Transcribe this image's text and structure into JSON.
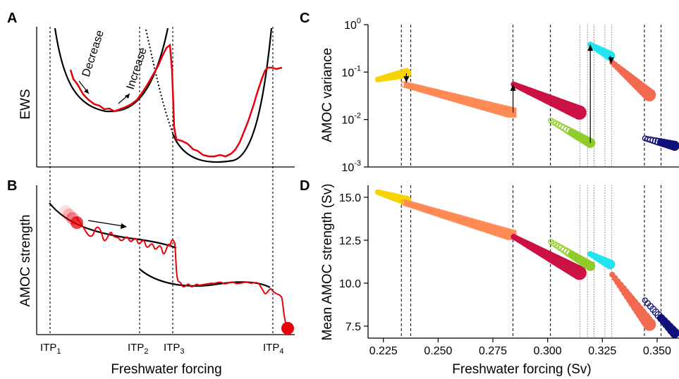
{
  "panels": {
    "A": {
      "label": "A",
      "ylabel": "EWS",
      "decrease": "Decrease",
      "increase": "Increase"
    },
    "B": {
      "label": "B",
      "ylabel": "AMOC strength"
    },
    "C": {
      "label": "C",
      "ylabel": "AMOC variance"
    },
    "D": {
      "label": "D",
      "ylabel": "Mean AMOC strength (Sv)"
    }
  },
  "left_xlabel": "Freshwater forcing",
  "itp": [
    {
      "main": "ITP",
      "sub": "1"
    },
    {
      "main": "ITP",
      "sub": "2"
    },
    {
      "main": "ITP",
      "sub": "3"
    },
    {
      "main": "ITP",
      "sub": "4"
    }
  ],
  "colors": {
    "yellow": "#f5d400",
    "orange": "#ff8a55",
    "crimson": "#cc1144",
    "green": "#8fcc2a",
    "cyan": "#22e3f0",
    "salmon": "#f26a4f",
    "navy": "#10107a",
    "red": "#e8000a"
  },
  "chart_data": [
    {
      "panel": "C",
      "type": "scatter",
      "xlabel": "",
      "ylabel": "AMOC variance",
      "yscale": "log",
      "xlim": [
        0.218,
        0.36
      ],
      "ylim": [
        0.001,
        1
      ],
      "yticks": [
        {
          "value": 1,
          "base": "10",
          "exp": "0"
        },
        {
          "value": 0.1,
          "base": "10",
          "exp": "-1"
        },
        {
          "value": 0.01,
          "base": "10",
          "exp": "-2"
        },
        {
          "value": 0.001,
          "base": "10",
          "exp": "-3"
        }
      ],
      "vlines_dashed": [
        0.2332,
        0.2375,
        0.2842,
        0.3013,
        0.3442,
        0.3518
      ],
      "vlines_dotted": [
        0.3147,
        0.3182,
        0.3212,
        0.3262,
        0.3292
      ],
      "series": [
        {
          "color": "yellow",
          "marker": "circle",
          "x_range": [
            0.2225,
            0.2355
          ],
          "y_range": [
            0.07,
            0.095
          ]
        },
        {
          "color": "orange",
          "marker": "square",
          "x_range": [
            0.2345,
            0.2835
          ],
          "y_range": [
            0.055,
            0.014
          ]
        },
        {
          "color": "crimson",
          "marker": "circle",
          "x_range": [
            0.2845,
            0.3145
          ],
          "y_range": [
            0.055,
            0.014
          ]
        },
        {
          "color": "green",
          "marker": "circle",
          "x_range": [
            0.3015,
            0.3195
          ],
          "y_range": [
            0.0095,
            0.0032
          ]
        },
        {
          "color": "cyan",
          "marker": "circle",
          "x_range": [
            0.3195,
            0.3285
          ],
          "y_range": [
            0.38,
            0.22
          ]
        },
        {
          "color": "salmon",
          "marker": "circle",
          "x_range": [
            0.3295,
            0.3465
          ],
          "y_range": [
            0.16,
            0.033
          ]
        },
        {
          "color": "navy",
          "marker": "circle",
          "x_range": [
            0.3445,
            0.358
          ],
          "y_range": [
            0.004,
            0.0028
          ]
        }
      ]
    },
    {
      "panel": "D",
      "type": "scatter",
      "xlabel": "Freshwater forcing (Sv)",
      "ylabel": "Mean AMOC strength (Sv)",
      "xlim": [
        0.218,
        0.36
      ],
      "ylim": [
        6.8,
        15.7
      ],
      "xticks": [
        "0.225",
        "0.250",
        "0.275",
        "0.300",
        "0.325",
        "0.350"
      ],
      "xtick_values": [
        0.225,
        0.25,
        0.275,
        0.3,
        0.325,
        0.35
      ],
      "yticks": [
        "15.0",
        "12.5",
        "10.0",
        "7.5"
      ],
      "ytick_values": [
        15.0,
        12.5,
        10.0,
        7.5
      ],
      "series": [
        {
          "color": "yellow",
          "marker": "circle",
          "x_range": [
            0.2225,
            0.2355
          ],
          "y_range": [
            15.3,
            14.8
          ]
        },
        {
          "color": "orange",
          "marker": "square",
          "x_range": [
            0.2345,
            0.2835
          ],
          "y_range": [
            14.7,
            12.8
          ]
        },
        {
          "color": "crimson",
          "marker": "circle",
          "x_range": [
            0.2845,
            0.3145
          ],
          "y_range": [
            12.7,
            10.6
          ]
        },
        {
          "color": "green",
          "marker": "circle",
          "x_range": [
            0.3015,
            0.3195
          ],
          "y_range": [
            12.4,
            11.0
          ]
        },
        {
          "color": "cyan",
          "marker": "circle",
          "x_range": [
            0.3195,
            0.3285
          ],
          "y_range": [
            11.7,
            11.1
          ]
        },
        {
          "color": "salmon",
          "marker": "circle",
          "x_range": [
            0.3295,
            0.3465
          ],
          "y_range": [
            10.5,
            7.6
          ]
        },
        {
          "color": "navy",
          "marker": "circle",
          "x_range": [
            0.3445,
            0.358
          ],
          "y_range": [
            9.0,
            7.1
          ]
        }
      ]
    }
  ]
}
